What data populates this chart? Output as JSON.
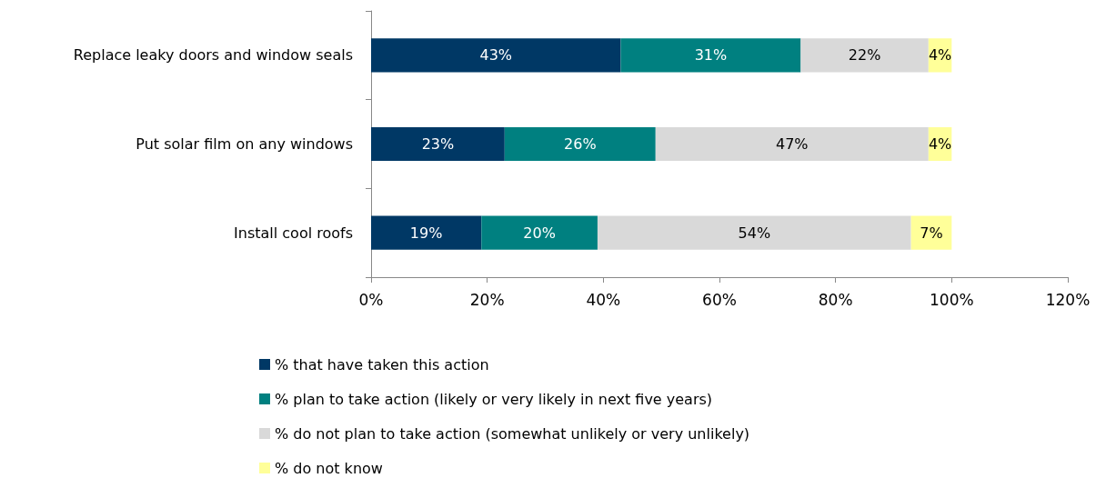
{
  "chart_data": {
    "type": "bar",
    "orientation": "horizontal",
    "stacked": true,
    "categories": [
      "Replace leaky doors and window seals",
      "Put solar film on any windows",
      "Install cool roofs"
    ],
    "series": [
      {
        "name": "% that have taken this action",
        "color": "#003865",
        "values": [
          43,
          23,
          19
        ],
        "value_labels": [
          "43%",
          "23%",
          "19%"
        ]
      },
      {
        "name": "% plan to take action (likely or very likely in next five years)",
        "color": "#008080",
        "values": [
          31,
          26,
          20
        ],
        "value_labels": [
          "31%",
          "26%",
          "20%"
        ]
      },
      {
        "name": "% do not plan to take action (somewhat unlikely or very unlikely)",
        "color": "#d9d9d9",
        "values": [
          22,
          47,
          54
        ],
        "value_labels": [
          "22%",
          "47%",
          "54%"
        ]
      },
      {
        "name": "% do not know",
        "color": "#ffff99",
        "values": [
          4,
          4,
          7
        ],
        "value_labels": [
          "4%",
          "4%",
          "7%"
        ]
      }
    ],
    "xlim": [
      0,
      120
    ],
    "xticks": [
      {
        "value": 0,
        "label": "0%"
      },
      {
        "value": 20,
        "label": "20%"
      },
      {
        "value": 40,
        "label": "40%"
      },
      {
        "value": 60,
        "label": "60%"
      },
      {
        "value": 80,
        "label": "80%"
      },
      {
        "value": 100,
        "label": "100%"
      },
      {
        "value": 120,
        "label": "120%"
      }
    ],
    "grid": false,
    "legend": "bottom"
  }
}
